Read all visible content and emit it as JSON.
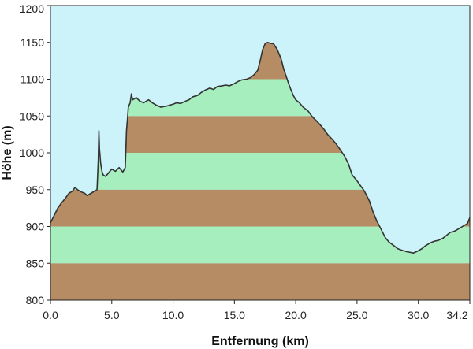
{
  "chart_data": {
    "type": "area",
    "title": "",
    "xlabel": "Entfernung  (km)",
    "ylabel": "Höhe (m)",
    "xlim": [
      0,
      34.2
    ],
    "ylim": [
      800,
      1200
    ],
    "x_ticks": [
      {
        "value": 0,
        "label": "0.0"
      },
      {
        "value": 5,
        "label": "5.0"
      },
      {
        "value": 10,
        "label": "10.0"
      },
      {
        "value": 15,
        "label": "15.0"
      },
      {
        "value": 20,
        "label": "20.0"
      },
      {
        "value": 25,
        "label": "25.0"
      },
      {
        "value": 30,
        "label": "30.0"
      },
      {
        "value": 34.2,
        "label": "34.2"
      }
    ],
    "y_ticks": [
      {
        "value": 800,
        "label": "800"
      },
      {
        "value": 850,
        "label": "850"
      },
      {
        "value": 900,
        "label": "900"
      },
      {
        "value": 950,
        "label": "950"
      },
      {
        "value": 1000,
        "label": "1000"
      },
      {
        "value": 1050,
        "label": "1050"
      },
      {
        "value": 1100,
        "label": "1100"
      },
      {
        "value": 1150,
        "label": "1150"
      },
      {
        "value": 1200,
        "label": "1200"
      }
    ],
    "band_colors": [
      "#b58c63",
      "#a6eebd"
    ],
    "sky_color": "#cdf3fa",
    "line_color": "#333333",
    "grid": false,
    "legend": "none",
    "series": [
      {
        "x": [
          0,
          0.3,
          0.6,
          0.9,
          1.2,
          1.5,
          1.8,
          2.0,
          2.2,
          2.5,
          2.8,
          3.0,
          3.3,
          3.6,
          3.8,
          3.9,
          3.95,
          4.0,
          4.1,
          4.2,
          4.3,
          4.5,
          4.7,
          5.0,
          5.3,
          5.6,
          5.9,
          6.1,
          6.2,
          6.3,
          6.35,
          6.5,
          6.6,
          6.7,
          7.0,
          7.3,
          7.6,
          8.0,
          8.3,
          8.6,
          9.0,
          9.3,
          9.6,
          10.0,
          10.3,
          10.6,
          11.0,
          11.3,
          11.6,
          12.0,
          12.3,
          12.6,
          13.0,
          13.3,
          13.6,
          14.0,
          14.3,
          14.6,
          15.0,
          15.3,
          15.6,
          16.0,
          16.3,
          16.6,
          16.9,
          17.1,
          17.3,
          17.5,
          17.7,
          17.9,
          18.2,
          18.5,
          18.8,
          19.0,
          19.2,
          19.4,
          19.6,
          19.8,
          20.0,
          20.3,
          20.6,
          21.0,
          21.3,
          21.6,
          22.0,
          22.3,
          22.6,
          23.0,
          23.3,
          23.6,
          24.0,
          24.3,
          24.6,
          25.0,
          25.3,
          25.6,
          26.0,
          26.3,
          26.6,
          27.0,
          27.3,
          27.6,
          28.0,
          28.3,
          28.6,
          29.0,
          29.3,
          29.6,
          30.0,
          30.3,
          30.6,
          31.0,
          31.3,
          31.6,
          32.0,
          32.3,
          32.6,
          33.0,
          33.3,
          33.6,
          34.0,
          34.2
        ],
        "values": [
          905,
          915,
          925,
          932,
          938,
          945,
          948,
          953,
          950,
          947,
          945,
          942,
          945,
          948,
          950,
          990,
          1030,
          1005,
          985,
          975,
          970,
          968,
          972,
          978,
          975,
          980,
          974,
          980,
          1030,
          1050,
          1062,
          1068,
          1080,
          1072,
          1075,
          1070,
          1068,
          1072,
          1068,
          1065,
          1062,
          1063,
          1064,
          1066,
          1068,
          1067,
          1070,
          1072,
          1076,
          1078,
          1082,
          1085,
          1088,
          1086,
          1090,
          1091,
          1092,
          1091,
          1094,
          1097,
          1099,
          1100,
          1102,
          1106,
          1112,
          1125,
          1140,
          1148,
          1150,
          1149,
          1148,
          1140,
          1128,
          1115,
          1105,
          1095,
          1086,
          1078,
          1072,
          1068,
          1062,
          1057,
          1050,
          1045,
          1038,
          1032,
          1025,
          1018,
          1012,
          1005,
          995,
          985,
          970,
          962,
          955,
          948,
          935,
          920,
          908,
          895,
          885,
          879,
          874,
          870,
          868,
          866,
          865,
          864,
          867,
          870,
          874,
          878,
          880,
          881,
          884,
          888,
          892,
          894,
          897,
          900,
          904,
          912
        ]
      }
    ]
  }
}
